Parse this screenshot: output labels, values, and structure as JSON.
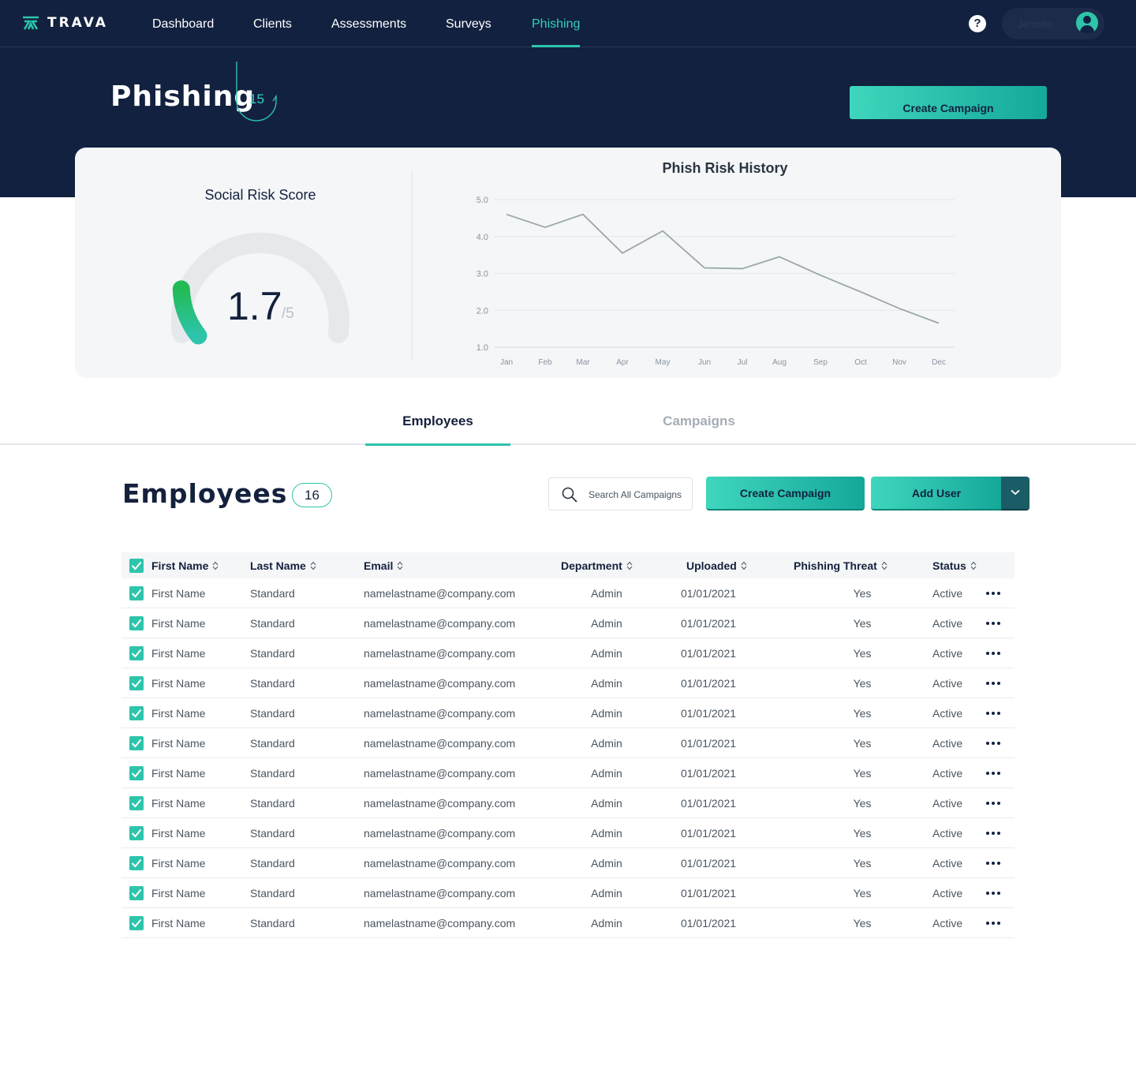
{
  "brand": {
    "name": "TRAVA"
  },
  "nav": {
    "items": [
      {
        "label": "Dashboard"
      },
      {
        "label": "Clients"
      },
      {
        "label": "Assessments"
      },
      {
        "label": "Surveys"
      },
      {
        "label": "Phishing",
        "active": true
      }
    ]
  },
  "user": {
    "name": "Jennifer"
  },
  "hero": {
    "title": "Phishing",
    "count": "15",
    "button_label": "Create Campaign"
  },
  "score": {
    "title": "Social Risk Score",
    "value": "1.7",
    "max": "/5",
    "fraction": 0.34
  },
  "chart_data": {
    "type": "line",
    "title": "Phish Risk History",
    "categories": [
      "Jan",
      "Feb",
      "Mar",
      "Apr",
      "May",
      "Jun",
      "Jul",
      "Aug",
      "Sep",
      "Oct",
      "Nov",
      "Dec"
    ],
    "values": [
      4.6,
      4.25,
      4.6,
      3.55,
      4.15,
      3.15,
      3.13,
      3.45,
      2.95,
      2.5,
      2.05,
      1.65
    ],
    "y_ticks": [
      "5.0",
      "4.0",
      "3.0",
      "2.0",
      "1.0"
    ],
    "ylim": [
      1.0,
      5.0
    ],
    "grid": true,
    "line_color": "#9aa7ab"
  },
  "tabs": [
    {
      "label": "Employees",
      "active": true
    },
    {
      "label": "Campaigns",
      "active": false
    }
  ],
  "employees": {
    "title": "Employees",
    "count": "16",
    "search_placeholder": "Search All Campaigns",
    "create_label": "Create Campaign",
    "add_user_label": "Add User"
  },
  "table": {
    "columns": [
      "First Name",
      "Last Name",
      "Email",
      "Department",
      "Uploaded",
      "Phishing Threat",
      "Status"
    ],
    "rows": [
      {
        "first": "First Name",
        "last": "Standard",
        "email": "namelastname@company.com",
        "department": "Admin",
        "uploaded": "01/01/2021",
        "threat": "Yes",
        "status": "Active"
      },
      {
        "first": "First Name",
        "last": "Standard",
        "email": "namelastname@company.com",
        "department": "Admin",
        "uploaded": "01/01/2021",
        "threat": "Yes",
        "status": "Active"
      },
      {
        "first": "First Name",
        "last": "Standard",
        "email": "namelastname@company.com",
        "department": "Admin",
        "uploaded": "01/01/2021",
        "threat": "Yes",
        "status": "Active"
      },
      {
        "first": "First Name",
        "last": "Standard",
        "email": "namelastname@company.com",
        "department": "Admin",
        "uploaded": "01/01/2021",
        "threat": "Yes",
        "status": "Active"
      },
      {
        "first": "First Name",
        "last": "Standard",
        "email": "namelastname@company.com",
        "department": "Admin",
        "uploaded": "01/01/2021",
        "threat": "Yes",
        "status": "Active"
      },
      {
        "first": "First Name",
        "last": "Standard",
        "email": "namelastname@company.com",
        "department": "Admin",
        "uploaded": "01/01/2021",
        "threat": "Yes",
        "status": "Active"
      },
      {
        "first": "First Name",
        "last": "Standard",
        "email": "namelastname@company.com",
        "department": "Admin",
        "uploaded": "01/01/2021",
        "threat": "Yes",
        "status": "Active"
      },
      {
        "first": "First Name",
        "last": "Standard",
        "email": "namelastname@company.com",
        "department": "Admin",
        "uploaded": "01/01/2021",
        "threat": "Yes",
        "status": "Active"
      },
      {
        "first": "First Name",
        "last": "Standard",
        "email": "namelastname@company.com",
        "department": "Admin",
        "uploaded": "01/01/2021",
        "threat": "Yes",
        "status": "Active"
      },
      {
        "first": "First Name",
        "last": "Standard",
        "email": "namelastname@company.com",
        "department": "Admin",
        "uploaded": "01/01/2021",
        "threat": "Yes",
        "status": "Active"
      },
      {
        "first": "First Name",
        "last": "Standard",
        "email": "namelastname@company.com",
        "department": "Admin",
        "uploaded": "01/01/2021",
        "threat": "Yes",
        "status": "Active"
      },
      {
        "first": "First Name",
        "last": "Standard",
        "email": "namelastname@company.com",
        "department": "Admin",
        "uploaded": "01/01/2021",
        "threat": "Yes",
        "status": "Active"
      }
    ]
  },
  "colors": {
    "navy": "#12213f",
    "accent": "#2ec4ac",
    "accent_light": "#33d1b8",
    "gauge_green": "#22bb55",
    "gauge_track": "#e6e9eb"
  },
  "icons": {
    "logo": "trava-logo-icon",
    "help": "help-icon",
    "avatar": "user-avatar-icon",
    "search": "search-icon",
    "checkbox": "checkbox-checked-icon",
    "sort": "sort-icon",
    "more": "more-dots-icon",
    "dropdown": "chevron-down-icon",
    "hook": "fishing-hook-icon"
  }
}
